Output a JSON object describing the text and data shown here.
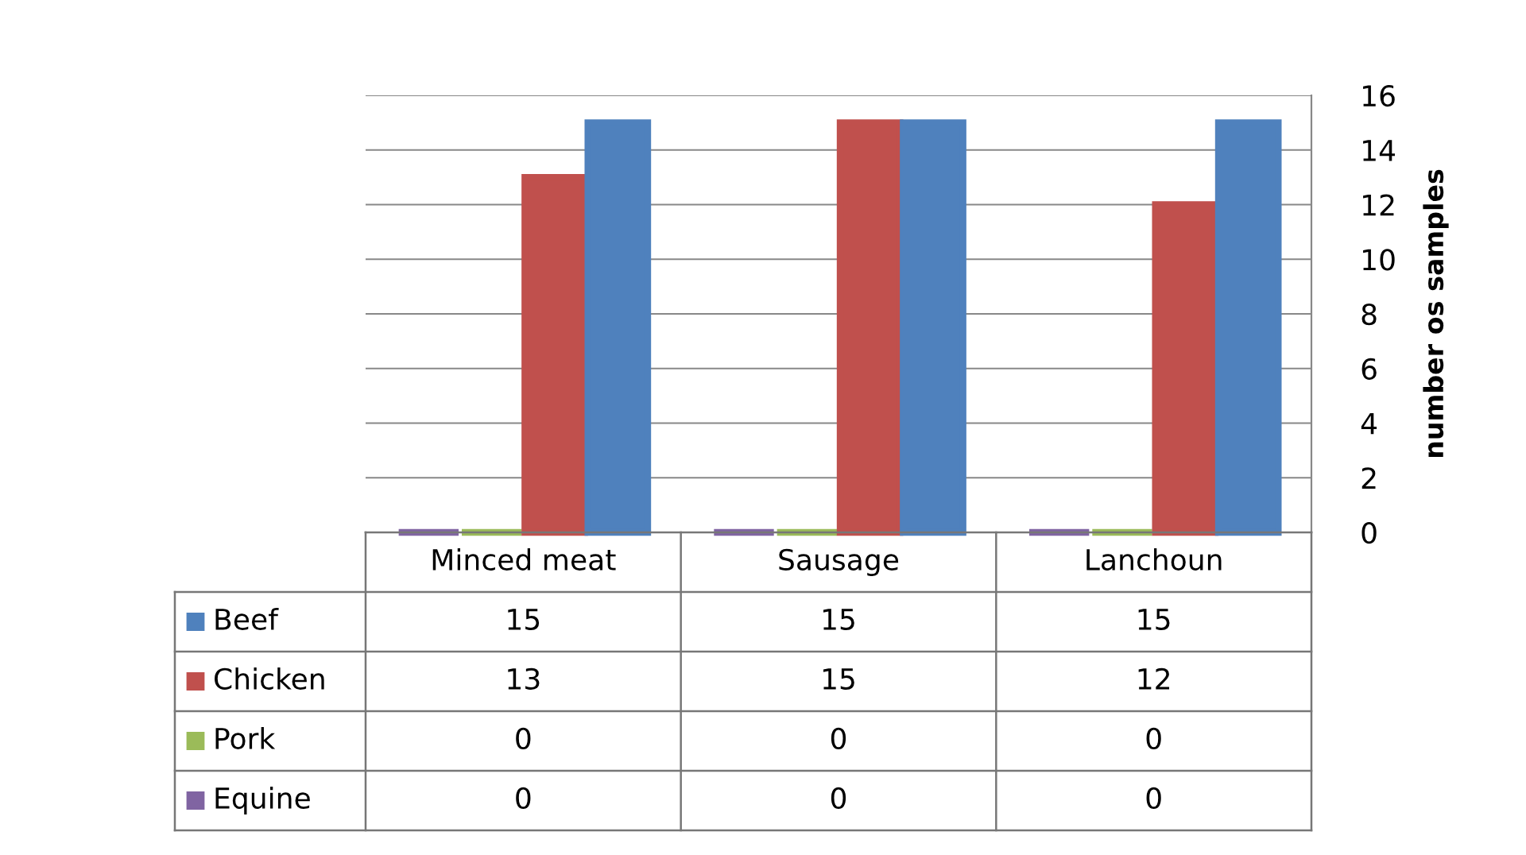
{
  "chart_data": {
    "type": "bar",
    "ylabel": "number os samples",
    "categories": [
      "Minced meat",
      "Sausage",
      "Lanchoun"
    ],
    "series": [
      {
        "name": "Equine",
        "color": "#8064a2",
        "values": [
          0,
          0,
          0
        ],
        "value_labels": [
          "0",
          "0",
          "0"
        ]
      },
      {
        "name": "Pork",
        "color": "#9bbb59",
        "values": [
          0,
          0,
          0
        ],
        "value_labels": [
          "0",
          "0",
          "0"
        ]
      },
      {
        "name": "Chicken",
        "color": "#c0504d",
        "values": [
          13,
          15,
          12
        ],
        "value_labels": [
          "13",
          "15",
          "12"
        ]
      },
      {
        "name": "Beef",
        "color": "#4f81bd",
        "values": [
          15,
          15,
          15
        ],
        "value_labels": [
          "15",
          "15",
          "15"
        ]
      }
    ],
    "ylim": [
      0,
      16
    ],
    "yticks": [
      0,
      2,
      4,
      6,
      8,
      10,
      12,
      14,
      16
    ],
    "grid": "y",
    "legend": "bottom"
  }
}
